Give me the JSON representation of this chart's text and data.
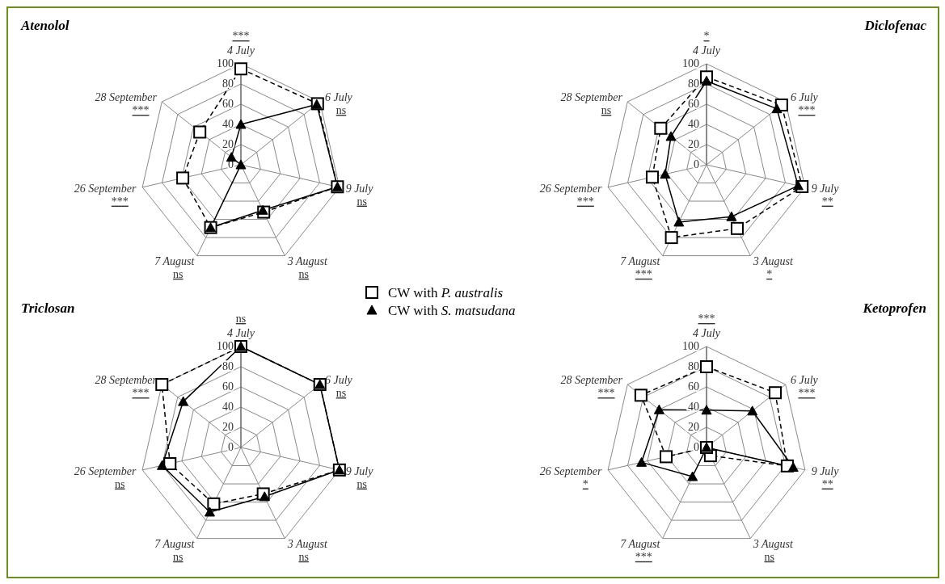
{
  "chart_data": [
    {
      "type": "radar",
      "title": "Atenolol",
      "categories": [
        "4 July",
        "6 July",
        "9 July",
        "3 August",
        "7 August",
        "26 September",
        "28 September"
      ],
      "ylim": [
        0,
        100
      ],
      "yticks": [
        0,
        20,
        40,
        60,
        80,
        100
      ],
      "legend": "bottom right",
      "series": [
        {
          "name": "CW with P. australis",
          "color": "#000000",
          "marker": "square",
          "line_style": "dashed",
          "values": [
            95,
            97,
            98,
            52,
            69,
            59,
            52
          ]
        },
        {
          "name": "CW with S. matsudana",
          "color": "#000000",
          "marker": "triangle",
          "line_style": "solid",
          "values": [
            40,
            96,
            98,
            50,
            69,
            0,
            12
          ]
        }
      ],
      "annotations": [
        {
          "text": "***",
          "x": "4 July"
        },
        {
          "text": "ns",
          "x": "6 July"
        },
        {
          "text": "ns",
          "x": "9 July"
        },
        {
          "text": "ns",
          "x": "3 August"
        },
        {
          "text": "ns",
          "x": "7 August"
        },
        {
          "text": "***",
          "x": "26 September"
        },
        {
          "text": "***",
          "x": "28 September"
        }
      ]
    },
    {
      "type": "radar",
      "title": "Diclofenac",
      "categories": [
        "4 July",
        "6 July",
        "9 July",
        "3 August",
        "7 August",
        "26 September",
        "28 September"
      ],
      "ylim": [
        0,
        100
      ],
      "yticks": [
        0,
        20,
        40,
        60,
        80,
        100
      ],
      "series": [
        {
          "color": "#000000",
          "marker": "square",
          "line_style": "dashed",
          "values": [
            87,
            95,
            97,
            70,
            80,
            55,
            58
          ]
        },
        {
          "color": "#000000",
          "marker": "triangle",
          "line_style": "solid",
          "values": [
            83,
            89,
            93,
            57,
            63,
            42,
            45
          ]
        }
      ],
      "annotations": [
        {
          "text": "*",
          "x": "4 July"
        },
        {
          "text": "***",
          "x": "6 July"
        },
        {
          "text": "**",
          "x": "9 July"
        },
        {
          "text": "*",
          "x": "3 August"
        },
        {
          "text": "***",
          "x": "7 August"
        },
        {
          "text": "***",
          "x": "26 September"
        },
        {
          "text": "ns",
          "x": "28 September"
        }
      ]
    },
    {
      "type": "radar",
      "title": "Triclosan",
      "categories": [
        "4 July",
        "6 July",
        "9 July",
        "3 August",
        "7 August",
        "26 September",
        "28 September"
      ],
      "ylim": [
        0,
        100
      ],
      "yticks": [
        0,
        20,
        40,
        60,
        80,
        100
      ],
      "series": [
        {
          "color": "#000000",
          "marker": "square",
          "line_style": "dashed",
          "values": [
            100,
            100,
            100,
            51,
            62,
            72,
            100
          ]
        },
        {
          "color": "#000000",
          "marker": "triangle",
          "line_style": "solid",
          "values": [
            100,
            100,
            100,
            54,
            71,
            80,
            73
          ]
        }
      ],
      "annotations": [
        {
          "text": "ns",
          "x": "4 July"
        },
        {
          "text": "ns",
          "x": "6 July"
        },
        {
          "text": "ns",
          "x": "9 July"
        },
        {
          "text": "ns",
          "x": "3 August"
        },
        {
          "text": "ns",
          "x": "7 August"
        },
        {
          "text": "ns",
          "x": "26 September"
        },
        {
          "text": "***",
          "x": "28 September"
        }
      ]
    },
    {
      "type": "radar",
      "title": "Ketoprofen",
      "categories": [
        "4 July",
        "6 July",
        "9 July",
        "3 August",
        "7 August",
        "26 September",
        "28 September"
      ],
      "ylim": [
        0,
        100
      ],
      "yticks": [
        0,
        20,
        40,
        60,
        80,
        100
      ],
      "series": [
        {
          "color": "#000000",
          "marker": "square",
          "line_style": "dashed",
          "values": [
            80,
            87,
            82,
            9,
            0,
            41,
            83
          ]
        },
        {
          "color": "#000000",
          "marker": "triangle",
          "line_style": "solid",
          "values": [
            37,
            58,
            88,
            0,
            32,
            66,
            60
          ]
        }
      ],
      "annotations": [
        {
          "text": "***",
          "x": "4 July"
        },
        {
          "text": "***",
          "x": "6 July"
        },
        {
          "text": "**",
          "x": "9 July"
        },
        {
          "text": "ns",
          "x": "3 August"
        },
        {
          "text": "***",
          "x": "7 August"
        },
        {
          "text": "*",
          "x": "26 September"
        },
        {
          "text": "***",
          "x": "28 September"
        }
      ]
    }
  ]
}
